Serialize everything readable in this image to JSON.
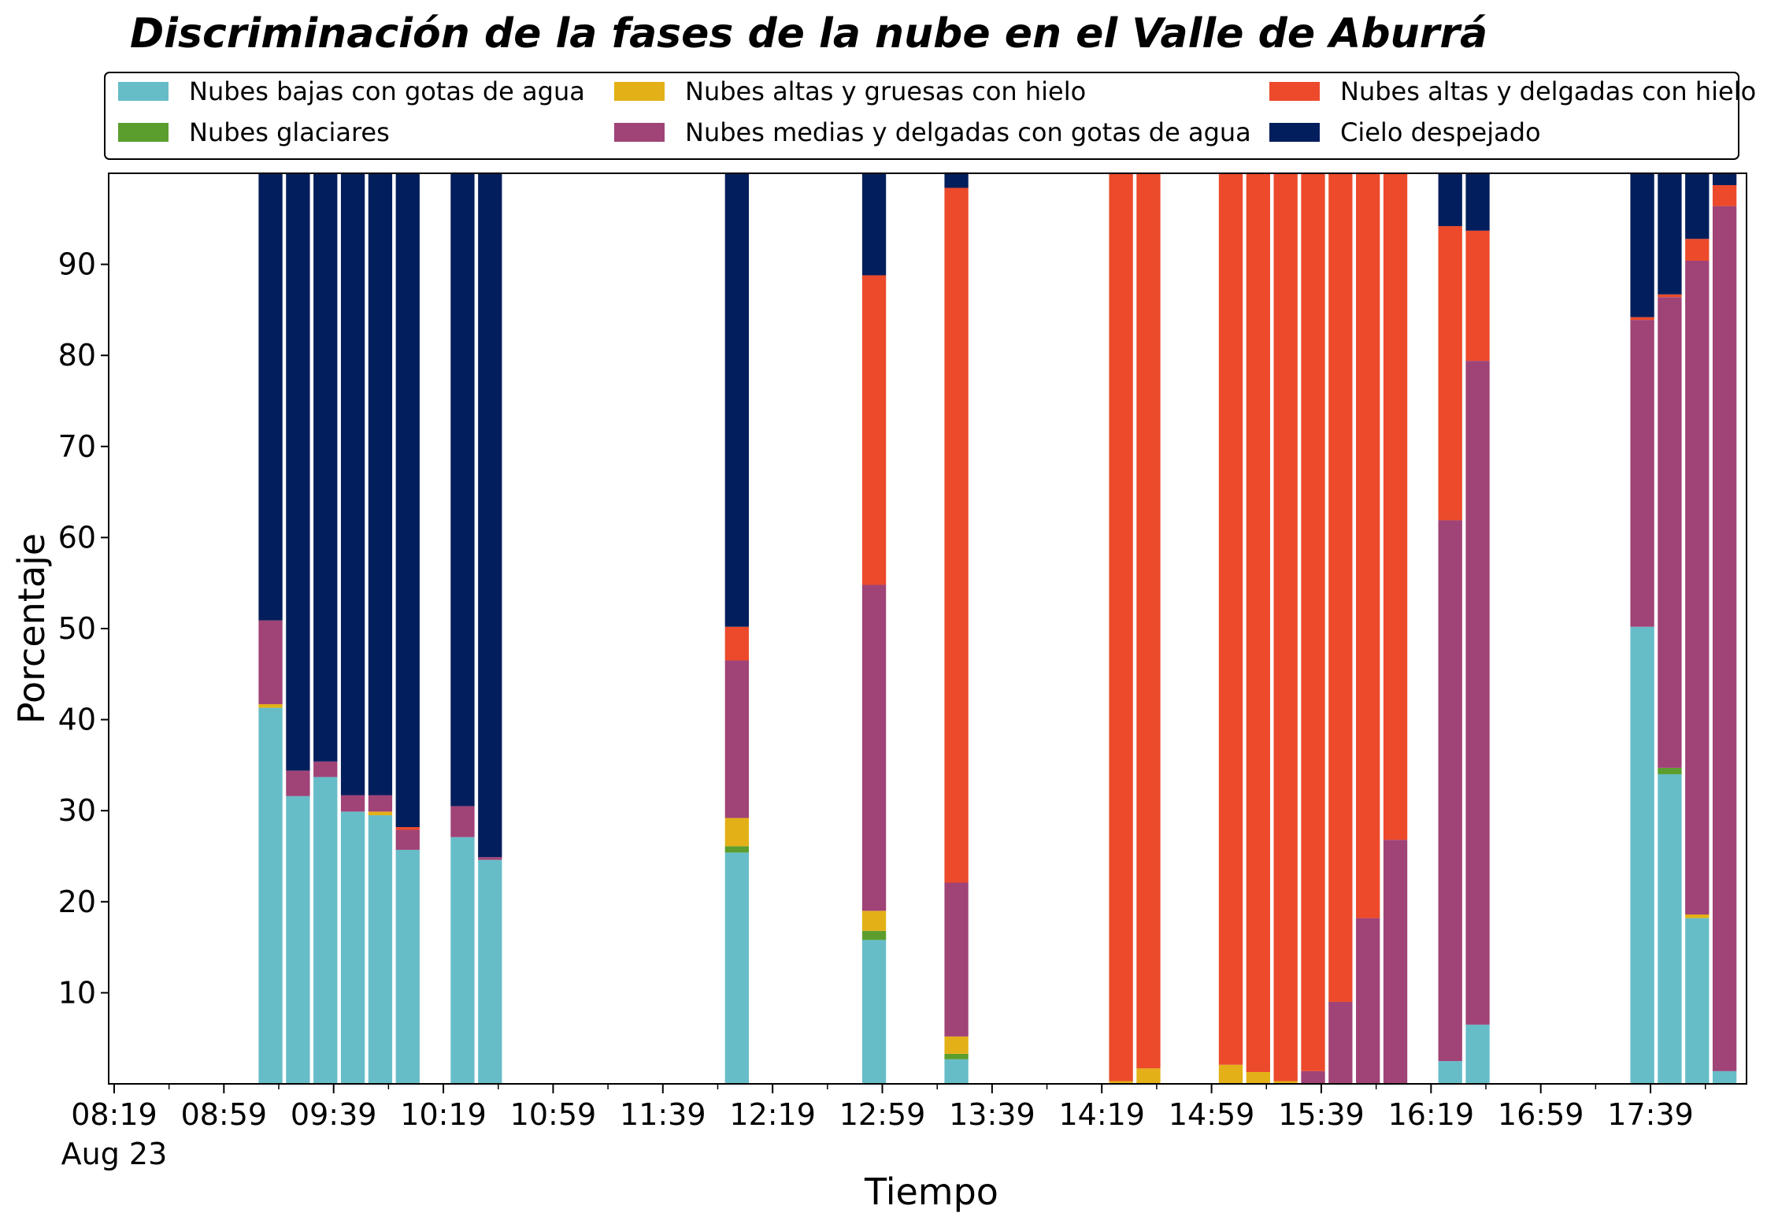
{
  "chart_data": {
    "type": "bar",
    "stacked": true,
    "title": "Discriminación de la fases de la nube en el Valle de Aburrá",
    "xlabel": "Tiempo",
    "ylabel": "Porcentaje",
    "ylim": [
      0,
      100
    ],
    "yticks": [
      10,
      20,
      30,
      40,
      50,
      60,
      70,
      80,
      90
    ],
    "xlim_minutes": [
      -2,
      595
    ],
    "xticks": [
      {
        "label": "08:19",
        "sub": "Aug 23",
        "minute": 0
      },
      {
        "label": "08:59",
        "minute": 40
      },
      {
        "label": "09:39",
        "minute": 80
      },
      {
        "label": "10:19",
        "minute": 120
      },
      {
        "label": "10:59",
        "minute": 160
      },
      {
        "label": "11:39",
        "minute": 200
      },
      {
        "label": "12:19",
        "minute": 240
      },
      {
        "label": "12:59",
        "minute": 280
      },
      {
        "label": "13:39",
        "minute": 320
      },
      {
        "label": "14:19",
        "minute": 360
      },
      {
        "label": "14:59",
        "minute": 400
      },
      {
        "label": "15:39",
        "minute": 440
      },
      {
        "label": "16:19",
        "minute": 480
      },
      {
        "label": "16:59",
        "minute": 520
      },
      {
        "label": "17:39",
        "minute": 560
      }
    ],
    "minor_tick_minutes": [
      20,
      60,
      100,
      140,
      180,
      220,
      260,
      300,
      340,
      380,
      420,
      460,
      500,
      540,
      580
    ],
    "legend": {
      "placement": "top",
      "columns": 3
    },
    "x_minutes": [
      57,
      67,
      77,
      87,
      97,
      107,
      127,
      137,
      227,
      277,
      307,
      367,
      377,
      407,
      417,
      427,
      437,
      447,
      457,
      467,
      487,
      497,
      557,
      567,
      577,
      587
    ],
    "series": [
      {
        "name": "Nubes bajas con gotas de agua",
        "color": "#66BDC8",
        "values": [
          41.3,
          31.6,
          33.7,
          29.9,
          29.5,
          25.7,
          27.1,
          24.6,
          25.4,
          15.8,
          2.7,
          0,
          0,
          0,
          0,
          0,
          0,
          0,
          0,
          0,
          2.5,
          6.5,
          50.2,
          34.0,
          18.2,
          1.4
        ]
      },
      {
        "name": "Nubes glaciares",
        "color": "#5C9E2E",
        "values": [
          0,
          0,
          0,
          0,
          0,
          0,
          0,
          0,
          0.7,
          1.0,
          0.6,
          0,
          0,
          0,
          0,
          0,
          0,
          0,
          0,
          0,
          0,
          0,
          0,
          0.7,
          0,
          0
        ]
      },
      {
        "name": "Nubes altas y gruesas con hielo",
        "color": "#E3B117",
        "values": [
          0.4,
          0,
          0,
          0,
          0.4,
          0,
          0,
          0,
          3.1,
          2.2,
          1.9,
          0.3,
          1.7,
          2.1,
          1.3,
          0.3,
          0,
          0,
          0,
          0,
          0,
          0,
          0,
          0,
          0.4,
          0
        ]
      },
      {
        "name": "Nubes medias y delgadas con gotas de agua",
        "color": "#A04377",
        "values": [
          9.2,
          2.8,
          1.7,
          1.8,
          1.8,
          2.2,
          3.4,
          0.3,
          17.3,
          35.8,
          16.9,
          0,
          0,
          0,
          0,
          0,
          1.4,
          9.0,
          18.2,
          26.8,
          59.4,
          72.9,
          33.7,
          51.7,
          71.8,
          95.0
        ]
      },
      {
        "name": "Nubes altas y delgadas con hielo",
        "color": "#EC4A2B",
        "values": [
          0,
          0,
          0,
          0,
          0,
          0.3,
          0,
          0,
          3.7,
          34.0,
          76.3,
          99.7,
          98.3,
          97.9,
          98.7,
          99.7,
          98.6,
          91.0,
          81.8,
          73.2,
          32.3,
          14.3,
          0.3,
          0.3,
          2.4,
          2.3
        ]
      },
      {
        "name": "Cielo despejado",
        "color": "#031E5C",
        "values": [
          49.1,
          65.6,
          64.6,
          68.3,
          68.3,
          71.8,
          69.5,
          75.1,
          49.8,
          11.2,
          1.7,
          0,
          0,
          0,
          0,
          0,
          0,
          0,
          0,
          0,
          5.8,
          6.3,
          15.8,
          13.3,
          7.2,
          1.3
        ]
      }
    ]
  }
}
